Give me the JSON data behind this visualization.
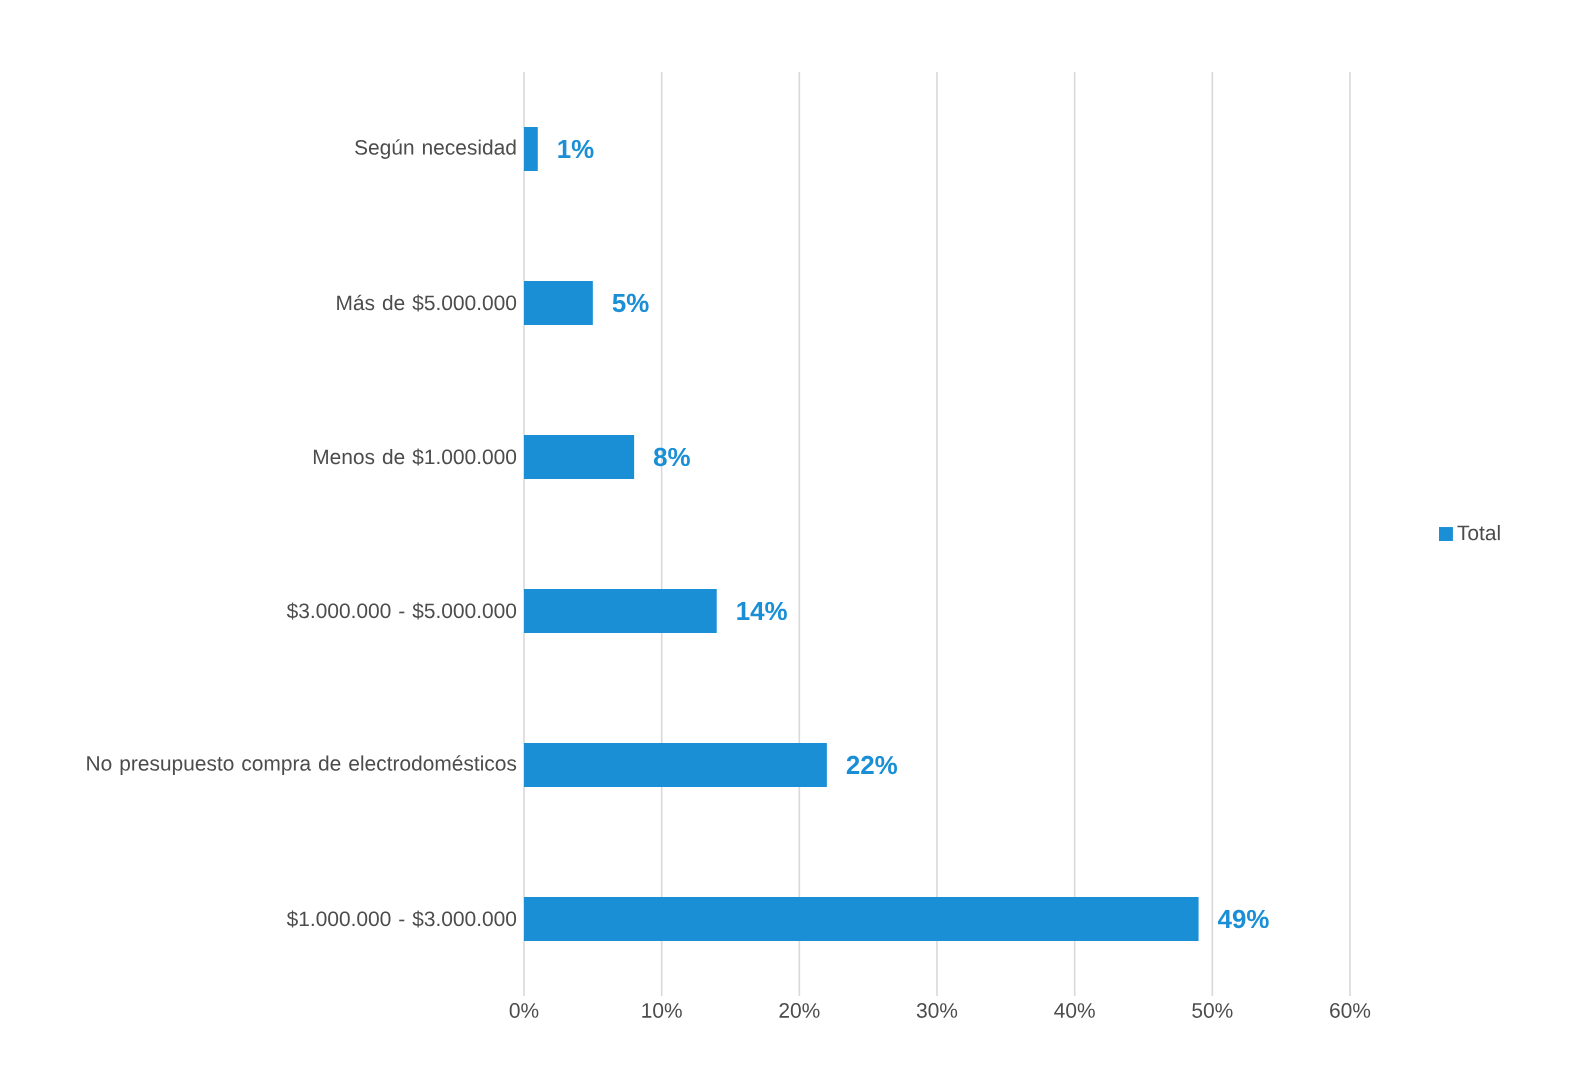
{
  "chart_data": {
    "type": "bar",
    "orientation": "horizontal",
    "categories": [
      "Según necesidad",
      "Más de $5.000.000",
      "Menos de $1.000.000",
      "$3.000.000 - $5.000.000",
      "No presupuesto compra de electrodomésticos",
      "$1.000.000 - $3.000.000"
    ],
    "series": [
      {
        "name": "Total",
        "color": "#1a8fd6",
        "values": [
          1,
          5,
          8,
          14,
          22,
          49
        ],
        "value_labels": [
          "1%",
          "5%",
          "8%",
          "14%",
          "22%",
          "49%"
        ]
      }
    ],
    "xlim": [
      0,
      60
    ],
    "xticks": [
      {
        "value": 0,
        "label": "0%"
      },
      {
        "value": 10,
        "label": "10%"
      },
      {
        "value": 20,
        "label": "20%"
      },
      {
        "value": 30,
        "label": "30%"
      },
      {
        "value": 40,
        "label": "40%"
      },
      {
        "value": 50,
        "label": "50%"
      },
      {
        "value": 60,
        "label": "60%"
      }
    ],
    "grid": "x",
    "legend": "right"
  }
}
